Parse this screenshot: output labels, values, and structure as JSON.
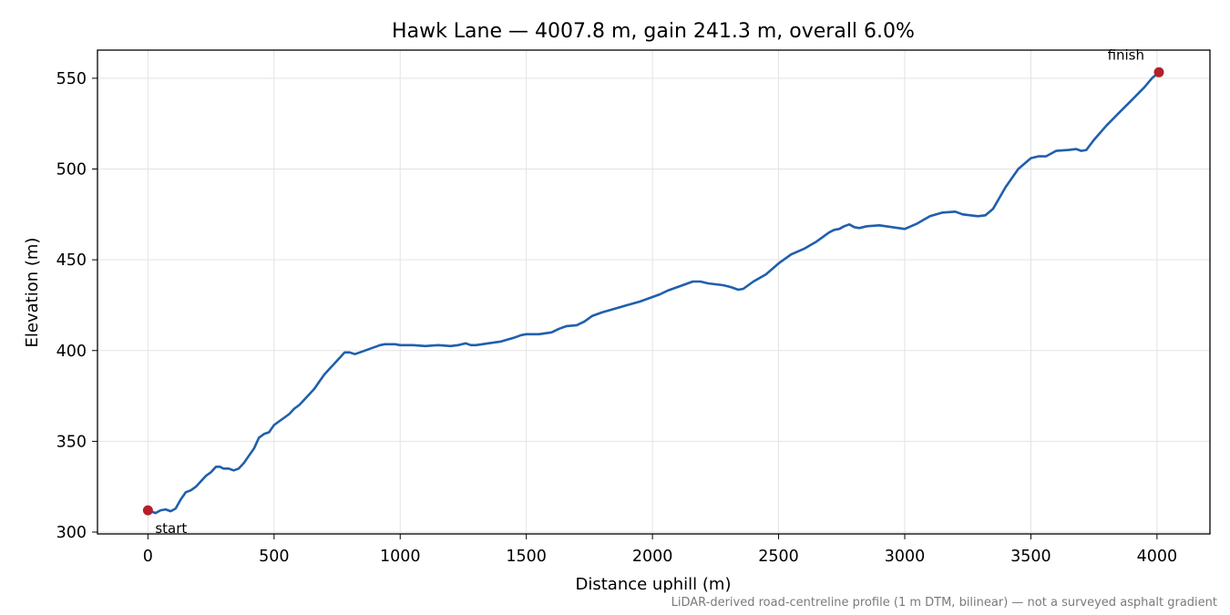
{
  "chart_data": {
    "type": "line",
    "title": "Hawk Lane — 4007.8 m, gain 241.3 m, overall 6.0%",
    "xlabel": "Distance uphill (m)",
    "ylabel": "Elevation (m)",
    "xlim": [
      -200,
      4210
    ],
    "ylim": [
      299,
      565.5
    ],
    "x_ticks": [
      0,
      500,
      1000,
      1500,
      2000,
      2500,
      3000,
      3500,
      4000
    ],
    "y_ticks": [
      300,
      350,
      400,
      450,
      500,
      550
    ],
    "grid": true,
    "line_color": "#1f5fad",
    "marker_color": "#b5202a",
    "note": "LiDAR-derived road-centreline profile (1 m DTM, bilinear) — not a surveyed asphalt gradient",
    "annotations": [
      {
        "label": "start",
        "x": 0,
        "y": 312
      },
      {
        "label": "finish",
        "x": 4007.8,
        "y": 553.3
      }
    ],
    "series": [
      {
        "x": [
          0,
          30,
          50,
          70,
          90,
          110,
          130,
          150,
          170,
          190,
          210,
          230,
          250,
          270,
          285,
          300,
          320,
          340,
          360,
          380,
          400,
          420,
          440,
          460,
          480,
          500,
          520,
          540,
          560,
          580,
          600,
          620,
          640,
          660,
          680,
          700,
          720,
          740,
          760,
          780,
          800,
          820,
          840,
          860,
          880,
          900,
          920,
          940,
          960,
          980,
          1000,
          1050,
          1100,
          1150,
          1200,
          1230,
          1260,
          1280,
          1300,
          1350,
          1400,
          1450,
          1480,
          1500,
          1520,
          1550,
          1600,
          1630,
          1660,
          1700,
          1730,
          1760,
          1780,
          1800,
          1850,
          1900,
          1950,
          2000,
          2030,
          2060,
          2100,
          2130,
          2160,
          2190,
          2220,
          2250,
          2280,
          2310,
          2340,
          2360,
          2400,
          2450,
          2500,
          2550,
          2600,
          2650,
          2700,
          2720,
          2740,
          2760,
          2780,
          2800,
          2820,
          2850,
          2900,
          2950,
          3000,
          3050,
          3100,
          3150,
          3200,
          3230,
          3260,
          3290,
          3320,
          3350,
          3400,
          3450,
          3500,
          3530,
          3560,
          3600,
          3650,
          3680,
          3700,
          3720,
          3750,
          3800,
          3850,
          3900,
          3950,
          3980,
          4007.8
        ],
        "y": [
          312,
          310.5,
          312,
          312.5,
          311.5,
          313,
          318,
          322,
          323,
          325,
          328,
          331,
          333,
          336,
          336,
          335,
          335,
          334,
          335,
          338,
          342,
          346,
          352,
          354,
          355,
          359,
          361,
          363,
          365,
          368,
          370,
          373,
          376,
          379,
          383,
          387,
          390,
          393,
          396,
          399,
          399,
          398,
          399,
          400,
          401,
          402,
          403,
          403.5,
          403.5,
          403.5,
          403,
          403,
          402.5,
          403,
          402.5,
          403,
          404,
          403,
          403,
          404,
          405,
          407,
          408.5,
          409,
          409,
          409,
          410,
          412,
          413.5,
          414,
          416,
          419,
          420,
          421,
          423,
          425,
          427,
          429.5,
          431,
          433,
          435,
          436.5,
          438,
          438,
          437,
          436.5,
          436,
          435,
          433.5,
          434,
          438,
          442,
          448,
          453,
          456,
          460,
          465,
          466.5,
          467,
          468.5,
          469.5,
          468,
          467.5,
          468.5,
          469,
          468,
          467,
          470,
          474,
          476,
          476.5,
          475,
          474.5,
          474,
          474.5,
          478,
          490,
          500,
          506,
          507,
          507,
          510,
          510.5,
          511,
          510,
          510.5,
          516,
          524,
          531,
          538,
          545,
          550,
          553.3
        ]
      }
    ]
  }
}
